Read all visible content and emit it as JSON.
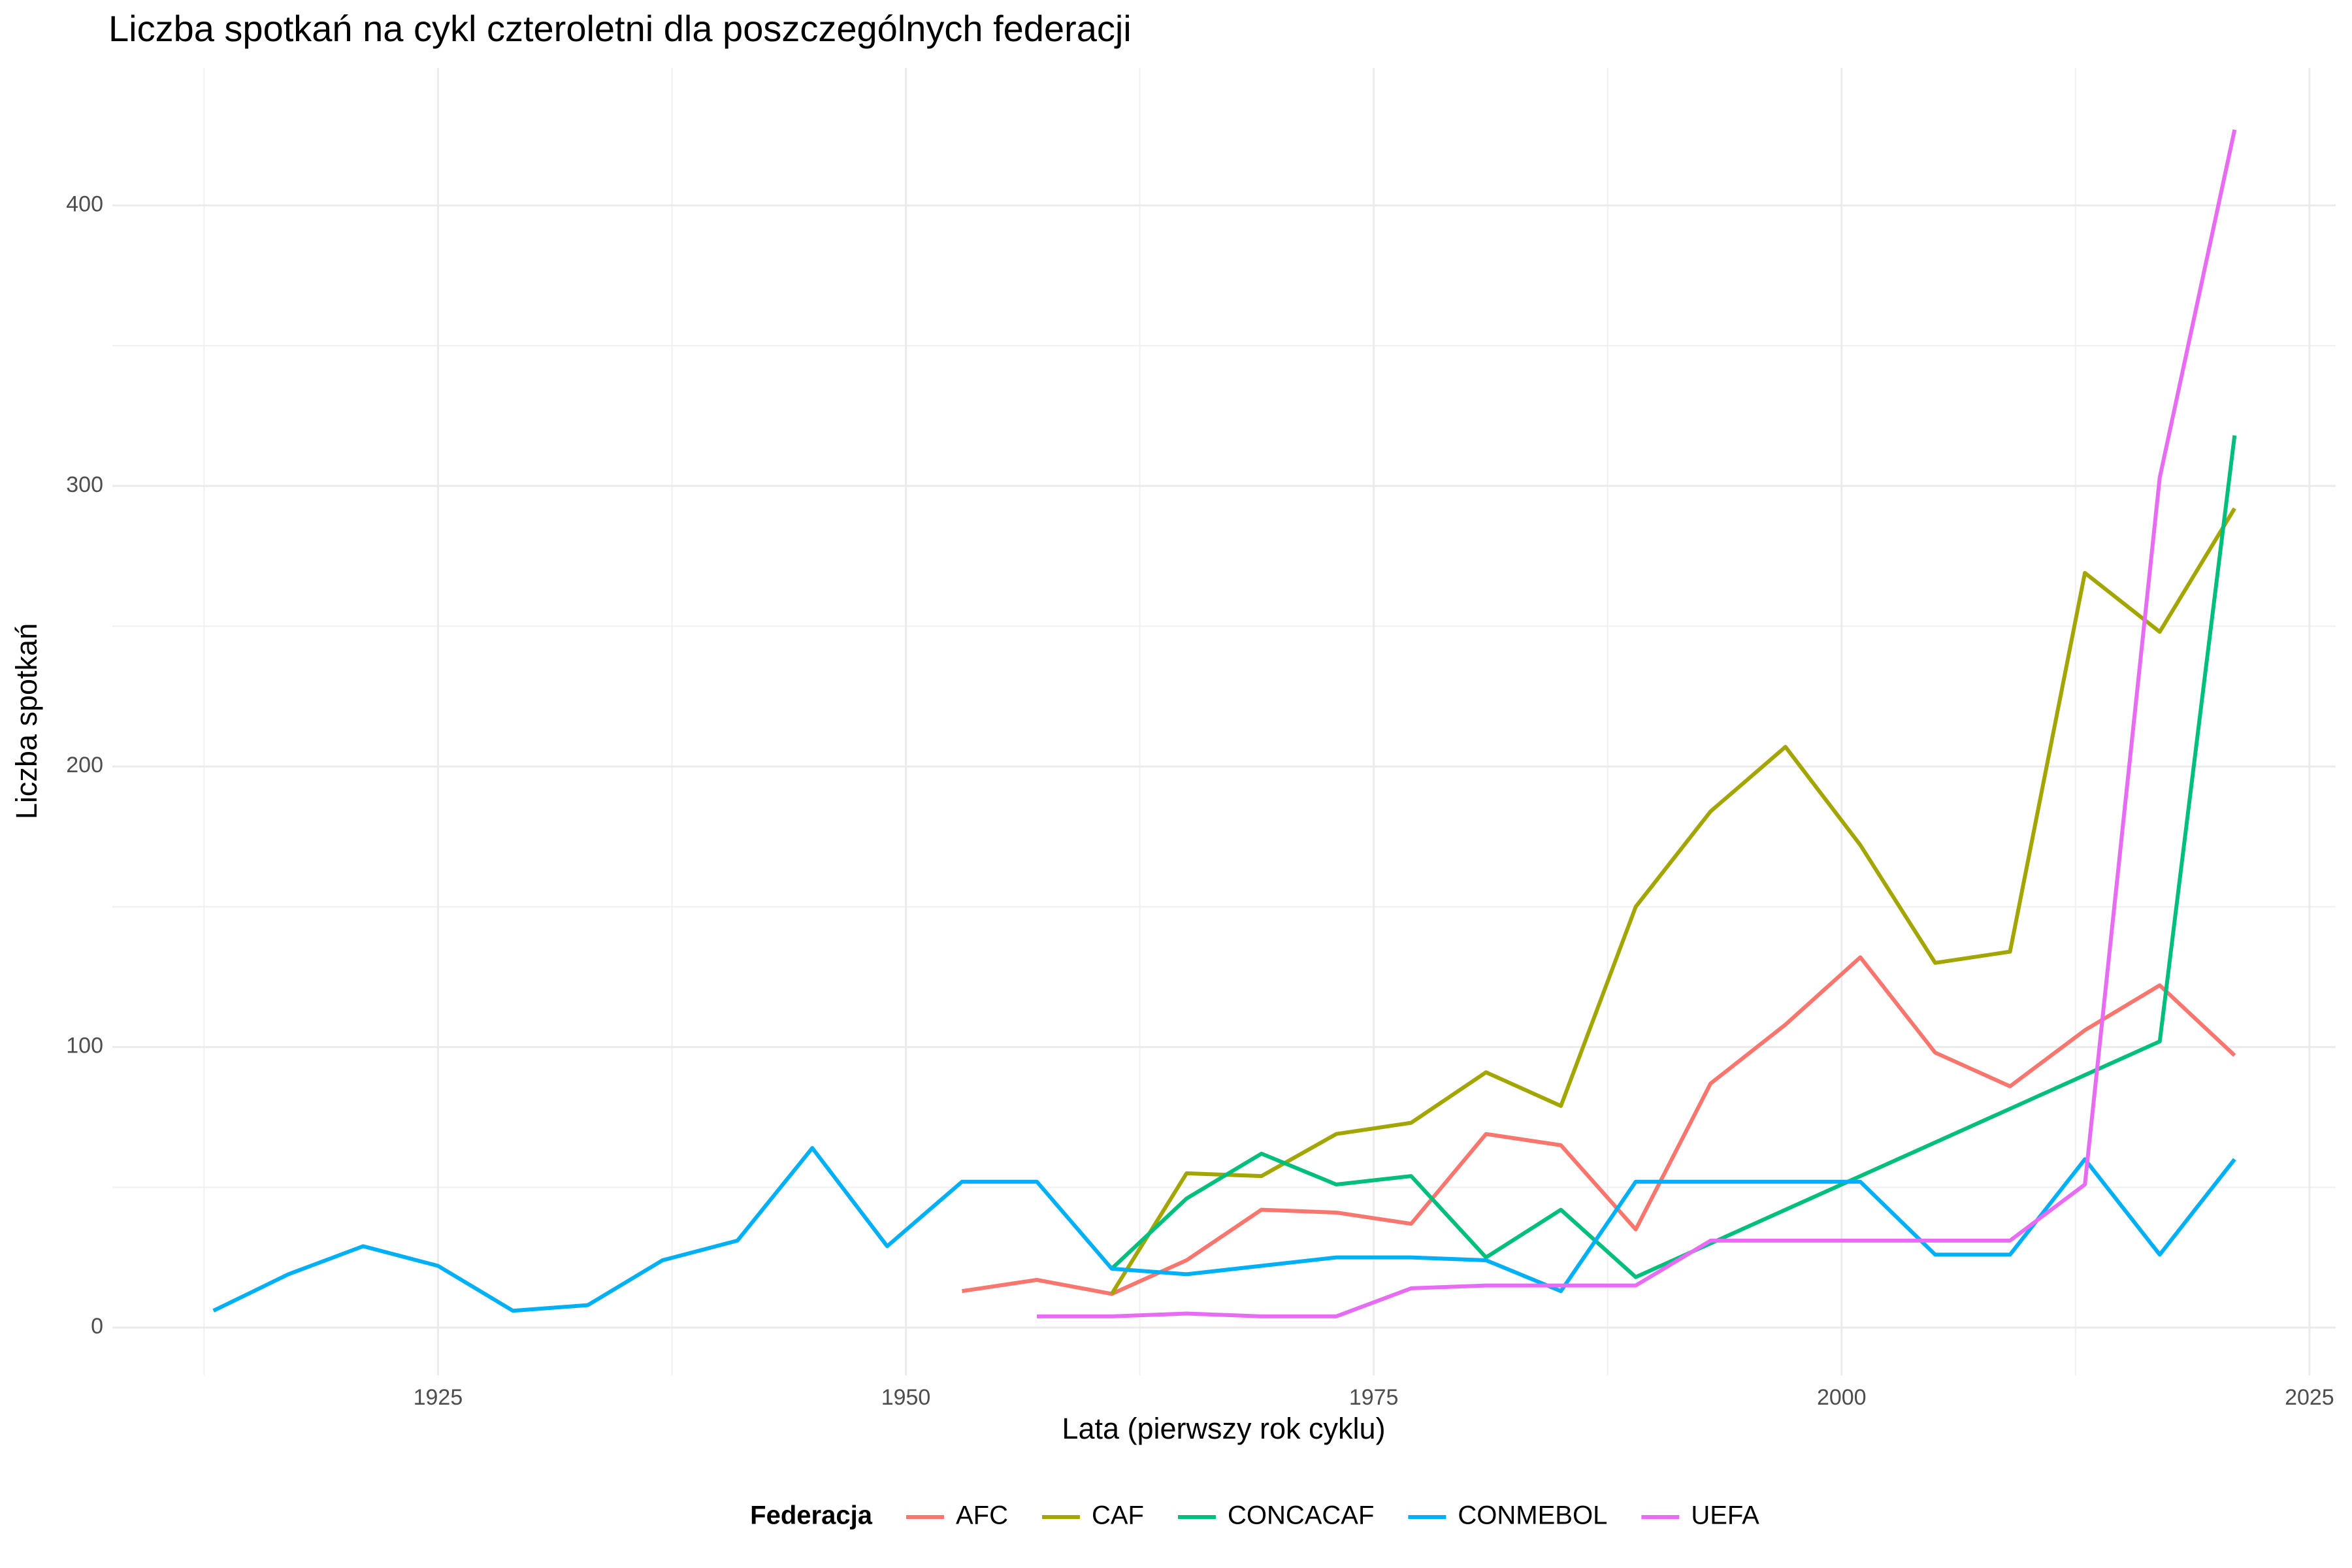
{
  "chart_data": {
    "type": "line",
    "title": "Liczba spotkań na cykl czteroletni dla poszczególnych federacji",
    "x_label": "Lata (pierwszy rok cyklu)",
    "y_label": "Liczba spotkań",
    "legend_title": "Federacja",
    "legend_position": "bottom",
    "grid": true,
    "x": [
      1913,
      1917,
      1921,
      1925,
      1929,
      1933,
      1937,
      1941,
      1945,
      1949,
      1953,
      1957,
      1961,
      1965,
      1969,
      1973,
      1977,
      1981,
      1985,
      1989,
      1993,
      1997,
      2001,
      2005,
      2009,
      2013,
      2017,
      2021
    ],
    "xlim": [
      1907.6,
      2026.4
    ],
    "xticks": [
      1925,
      1950,
      1975,
      2000,
      2025
    ],
    "ylim": [
      -17,
      449
    ],
    "yticks": [
      0,
      100,
      200,
      300,
      400
    ],
    "series": [
      {
        "name": "AFC",
        "color": "#F8766D",
        "values": [
          null,
          null,
          null,
          null,
          null,
          null,
          null,
          null,
          null,
          null,
          13,
          17,
          12,
          24,
          42,
          41,
          37,
          69,
          65,
          35,
          87,
          108,
          132,
          98,
          86,
          106,
          122,
          97
        ]
      },
      {
        "name": "CAF",
        "color": "#A3A500",
        "values": [
          null,
          null,
          null,
          null,
          null,
          null,
          null,
          null,
          null,
          null,
          null,
          null,
          12,
          55,
          54,
          69,
          73,
          91,
          79,
          150,
          184,
          207,
          172,
          130,
          134,
          269,
          248,
          292
        ]
      },
      {
        "name": "CONCACAF",
        "color": "#00BF7D",
        "values": [
          null,
          null,
          null,
          null,
          null,
          null,
          null,
          null,
          null,
          null,
          null,
          null,
          21,
          46,
          62,
          51,
          54,
          25,
          42,
          18,
          30,
          42,
          54,
          66,
          78,
          90,
          102,
          318
        ]
      },
      {
        "name": "CONMEBOL",
        "color": "#00B0F6",
        "values": [
          6,
          19,
          29,
          22,
          6,
          8,
          24,
          31,
          64,
          29,
          52,
          52,
          21,
          19,
          22,
          25,
          25,
          24,
          13,
          52,
          52,
          52,
          52,
          26,
          26,
          60,
          26,
          60
        ]
      },
      {
        "name": "UEFA",
        "color": "#E76BF3",
        "values": [
          null,
          null,
          null,
          null,
          null,
          null,
          null,
          null,
          null,
          null,
          null,
          4,
          4,
          5,
          4,
          4,
          14,
          15,
          15,
          15,
          31,
          31,
          31,
          31,
          31,
          51,
          303,
          427
        ]
      }
    ]
  }
}
